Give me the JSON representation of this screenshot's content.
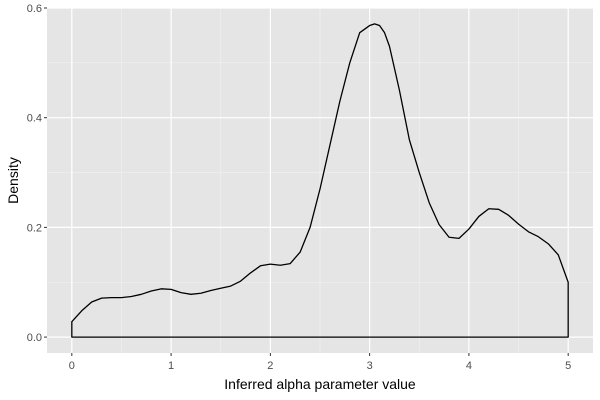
{
  "colors": {
    "panel_background": "#e5e5e5",
    "grid_major": "#ffffff",
    "grid_minor": "#f2f2f2",
    "density_line": "#000000",
    "tick_text": "#4d4d4d"
  },
  "chart_data": {
    "type": "line",
    "subtype": "density",
    "title": "",
    "xlabel": "Inferred alpha parameter value",
    "ylabel": "Density",
    "xlim": [
      -0.25,
      5.25
    ],
    "ylim": [
      -0.029,
      0.6
    ],
    "x_ticks": [
      0,
      1,
      2,
      3,
      4,
      5
    ],
    "x_tick_labels": [
      "0",
      "1",
      "2",
      "3",
      "4",
      "5"
    ],
    "y_ticks": [
      0.0,
      0.2,
      0.4,
      0.6
    ],
    "y_tick_labels": [
      "0.0",
      "0.2",
      "0.4",
      "0.6"
    ],
    "grid": true,
    "legend": "none",
    "series": [
      {
        "x": [
          0.0,
          0.1,
          0.2,
          0.3,
          0.4,
          0.5,
          0.6,
          0.7,
          0.8,
          0.9,
          1.0,
          1.1,
          1.2,
          1.3,
          1.4,
          1.5,
          1.6,
          1.7,
          1.8,
          1.9,
          2.0,
          2.1,
          2.2,
          2.3,
          2.4,
          2.5,
          2.6,
          2.7,
          2.8,
          2.9,
          3.0,
          3.05,
          3.1,
          3.15,
          3.2,
          3.3,
          3.4,
          3.5,
          3.6,
          3.7,
          3.8,
          3.9,
          4.0,
          4.1,
          4.2,
          4.3,
          4.4,
          4.5,
          4.6,
          4.7,
          4.8,
          4.9,
          5.0
        ],
        "y": [
          0.028,
          0.048,
          0.064,
          0.071,
          0.072,
          0.072,
          0.074,
          0.078,
          0.084,
          0.088,
          0.087,
          0.081,
          0.078,
          0.08,
          0.085,
          0.089,
          0.093,
          0.102,
          0.117,
          0.13,
          0.133,
          0.131,
          0.134,
          0.155,
          0.2,
          0.27,
          0.35,
          0.43,
          0.5,
          0.555,
          0.568,
          0.571,
          0.568,
          0.555,
          0.53,
          0.45,
          0.36,
          0.3,
          0.245,
          0.205,
          0.182,
          0.18,
          0.197,
          0.22,
          0.234,
          0.233,
          0.222,
          0.206,
          0.192,
          0.183,
          0.17,
          0.15,
          0.1
        ]
      }
    ]
  }
}
